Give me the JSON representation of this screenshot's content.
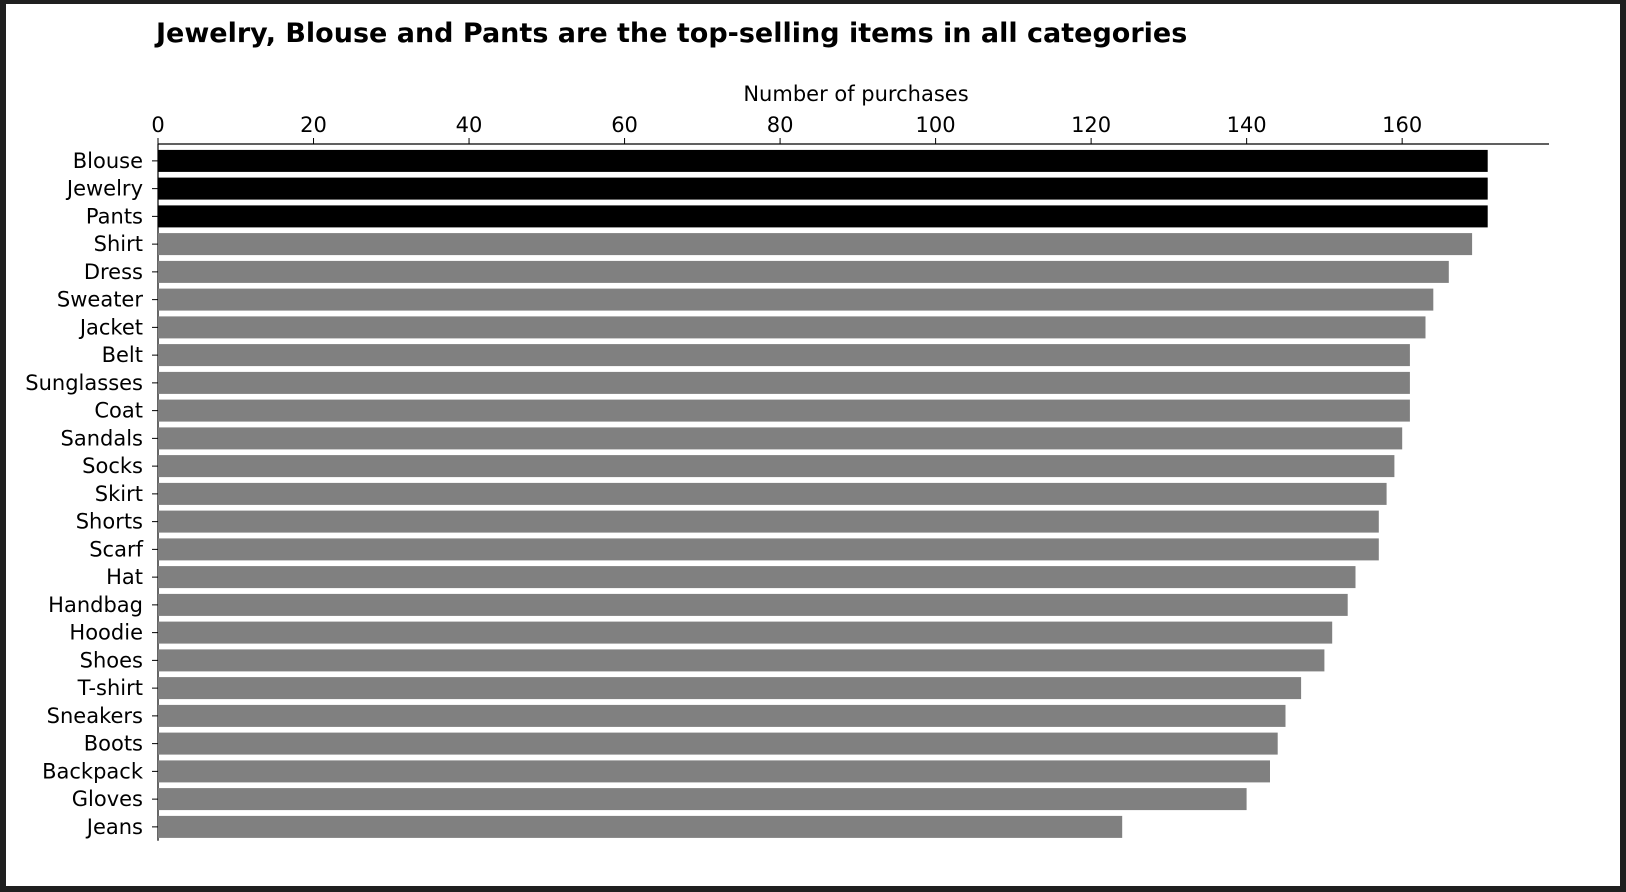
{
  "chart_data": {
    "type": "bar",
    "orientation": "horizontal",
    "title": "Jewelry, Blouse and Pants are the top-selling items in all categories",
    "xlabel": "Number of purchases",
    "xlabel_position": "top",
    "ylabel": "",
    "xlim": [
      0,
      180
    ],
    "xticks": [
      0,
      20,
      40,
      60,
      80,
      100,
      120,
      140,
      160
    ],
    "grid": false,
    "legend": "none",
    "categories": [
      "Blouse",
      "Jewelry",
      "Pants",
      "Shirt",
      "Dress",
      "Sweater",
      "Jacket",
      "Belt",
      "Sunglasses",
      "Coat",
      "Sandals",
      "Socks",
      "Skirt",
      "Shorts",
      "Scarf",
      "Hat",
      "Handbag",
      "Hoodie",
      "Shoes",
      "T-shirt",
      "Sneakers",
      "Boots",
      "Backpack",
      "Gloves",
      "Jeans"
    ],
    "values": [
      171,
      171,
      171,
      169,
      166,
      164,
      163,
      161,
      161,
      161,
      160,
      159,
      158,
      157,
      157,
      154,
      153,
      151,
      150,
      147,
      145,
      144,
      143,
      140,
      124
    ],
    "highlighted": [
      "Blouse",
      "Jewelry",
      "Pants"
    ],
    "colors": {
      "highlight": "#000000",
      "default": "#808080",
      "text": "#000000",
      "axis": "#000000"
    }
  }
}
